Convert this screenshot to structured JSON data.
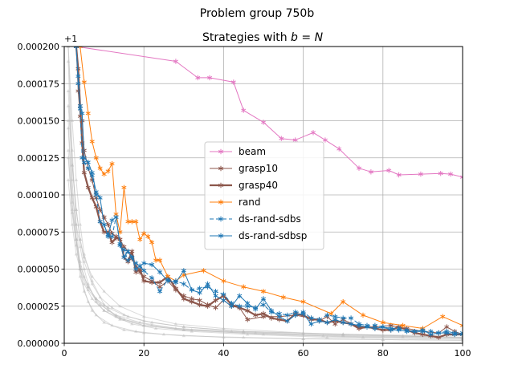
{
  "chart_data": {
    "type": "line",
    "suptitle": "Problem group 750b",
    "title": "Strategies with b = N",
    "title_prefix": "Strategies with ",
    "title_math": "b = N",
    "xlabel": "",
    "ylabel": "",
    "offset_text": "+1",
    "xlim": [
      0,
      100
    ],
    "ylim": [
      0,
      0.0002
    ],
    "xticks": [
      0,
      20,
      40,
      60,
      80,
      100
    ],
    "yticks": [
      0,
      2.5e-05,
      5e-05,
      7.5e-05,
      0.0001,
      0.000125,
      0.00015,
      0.000175,
      0.0002
    ],
    "xtick_labels": [
      "0",
      "20",
      "40",
      "60",
      "80",
      "100"
    ],
    "ytick_labels": [
      "0.000000",
      "0.000025",
      "0.000050",
      "0.000075",
      "0.000100",
      "0.000125",
      "0.000150",
      "0.000175",
      "0.000200"
    ],
    "grid": true,
    "legend_position": "center",
    "background_series_color": "#bbbbbb",
    "background_series": [
      {
        "x": [
          1,
          2,
          3,
          4,
          5,
          7,
          10,
          15,
          20,
          30,
          45,
          60,
          80,
          100
        ],
        "y": [
          0.0002,
          0.00013,
          8e-05,
          5e-05,
          3.5e-05,
          2.2e-05,
          1.4e-05,
          9e-06,
          7e-06,
          5e-06,
          4e-06,
          3e-06,
          2.5e-06,
          2e-06
        ]
      },
      {
        "x": [
          1,
          2,
          3,
          4,
          6,
          8,
          12,
          18,
          25,
          40,
          60,
          80,
          100
        ],
        "y": [
          0.00019,
          0.00011,
          7e-05,
          4.5e-05,
          2.8e-05,
          1.9e-05,
          1.2e-05,
          8e-06,
          6e-06,
          4e-06,
          3e-06,
          2.5e-06,
          2e-06
        ]
      },
      {
        "x": [
          1,
          2,
          3,
          4,
          5,
          7,
          9,
          12,
          16,
          22,
          30,
          45,
          70,
          100
        ],
        "y": [
          0.00017,
          0.00012,
          9e-05,
          7e-05,
          5.5e-05,
          4e-05,
          3.1e-05,
          2.4e-05,
          1.8e-05,
          1.4e-05,
          1.1e-05,
          8e-06,
          6e-06,
          4e-06
        ]
      },
      {
        "x": [
          1,
          2,
          3,
          4,
          5,
          6,
          8,
          10,
          14,
          20,
          30,
          50,
          75,
          100
        ],
        "y": [
          0.00015,
          0.0001,
          8e-05,
          6.5e-05,
          5e-05,
          4e-05,
          2.8e-05,
          2.2e-05,
          1.7e-05,
          1.2e-05,
          9e-06,
          6e-06,
          4e-06,
          3e-06
        ]
      },
      {
        "x": [
          1,
          2,
          3,
          4,
          5,
          7,
          10,
          14,
          20,
          28,
          40,
          60,
          85,
          100
        ],
        "y": [
          0.00016,
          0.00012,
          9e-05,
          7e-05,
          5.8e-05,
          4.5e-05,
          3.5e-05,
          2.5e-05,
          1.8e-05,
          1.3e-05,
          1e-05,
          7e-06,
          5e-06,
          4e-06
        ]
      },
      {
        "x": [
          1,
          2,
          3,
          4,
          5,
          6,
          8,
          11,
          15,
          20,
          30,
          45,
          70,
          100
        ],
        "y": [
          0.00013,
          9e-05,
          7e-05,
          5.5e-05,
          4.5e-05,
          3.8e-05,
          3e-05,
          2.4e-05,
          1.9e-05,
          1.5e-05,
          1.1e-05,
          8e-06,
          6e-06,
          5e-06
        ]
      },
      {
        "x": [
          1,
          2,
          3,
          4,
          6,
          8,
          11,
          15,
          22,
          32,
          48,
          70,
          100
        ],
        "y": [
          0.000145,
          9.5e-05,
          7e-05,
          5.2e-05,
          3.8e-05,
          3e-05,
          2.2e-05,
          1.6e-05,
          1.2e-05,
          9e-06,
          7e-06,
          5e-06,
          4e-06
        ]
      },
      {
        "x": [
          1,
          2,
          3,
          5,
          7,
          10,
          14,
          20,
          30,
          45,
          65,
          85,
          100
        ],
        "y": [
          0.00011,
          8e-05,
          6e-05,
          4e-05,
          3e-05,
          2.2e-05,
          1.6e-05,
          1.2e-05,
          9e-06,
          7e-06,
          5e-06,
          4e-06,
          3e-06
        ]
      },
      {
        "x": [
          1,
          2,
          3,
          4,
          5,
          7,
          10,
          13,
          17,
          23,
          32,
          46,
          66,
          100
        ],
        "y": [
          0.0002,
          0.00015,
          0.00011,
          8e-05,
          6e-05,
          4.2e-05,
          2.6e-05,
          1.8e-05,
          1.3e-05,
          1e-05,
          8e-06,
          6e-06,
          4e-06,
          3e-06
        ]
      },
      {
        "x": [
          1,
          2,
          3,
          4,
          6,
          9,
          13,
          19,
          28,
          42,
          60,
          80,
          100
        ],
        "y": [
          0.000125,
          8.8e-05,
          6.6e-05,
          5e-05,
          3.6e-05,
          2.6e-05,
          1.9e-05,
          1.4e-05,
          1e-05,
          8e-06,
          6e-06,
          5e-06,
          4e-06
        ]
      }
    ],
    "series": [
      {
        "name": "beam",
        "color": "#e377c2",
        "linestyle": "solid",
        "linewidth": 1,
        "x": [
          3,
          28,
          33.5,
          36.5,
          42.5,
          45,
          50,
          54.5,
          58,
          62.5,
          65.5,
          69,
          74,
          77,
          81.5,
          84,
          89.5,
          94.5,
          97,
          100
        ],
        "y": [
          0.0002,
          0.00019,
          0.000179,
          0.000179,
          0.000176,
          0.000157,
          0.000149,
          0.000138,
          0.000137,
          0.000142,
          0.000137,
          0.000131,
          0.000118,
          0.0001155,
          0.0001165,
          0.0001135,
          0.000114,
          0.0001145,
          0.000114,
          0.000112
        ]
      },
      {
        "name": "grasp10",
        "color": "#8c564b",
        "linestyle": "solid",
        "linewidth": 1,
        "x": [
          3,
          3.5,
          4,
          4.5,
          5,
          6,
          7,
          8,
          9,
          10,
          11,
          12,
          13,
          14,
          15,
          16,
          17,
          18,
          19,
          20,
          22,
          24,
          26,
          28,
          30,
          32,
          34,
          36,
          38,
          40,
          42,
          44,
          46,
          50,
          54,
          58,
          62,
          64,
          66,
          68,
          70,
          74,
          78,
          82,
          86,
          90,
          94,
          96,
          98,
          100
        ],
        "y": [
          0.0002,
          0.00017,
          0.000153,
          0.00015,
          0.00013,
          0.000118,
          0.00011,
          9.8e-05,
          9e-05,
          8.5e-05,
          8e-05,
          7.4e-05,
          7.2e-05,
          7e-05,
          6.5e-05,
          6.2e-05,
          5.7e-05,
          5.2e-05,
          4.8e-05,
          4.5e-05,
          4.2e-05,
          3.8e-05,
          4.2e-05,
          3.6e-05,
          3.2e-05,
          3e-05,
          2.9e-05,
          2.6e-05,
          2.4e-05,
          2.9e-05,
          2.5e-05,
          2.4e-05,
          1.6e-05,
          1.8e-05,
          1.8e-05,
          1.9e-05,
          1.7e-05,
          1.5e-05,
          1.8e-05,
          1.3e-05,
          1.6e-05,
          1.1e-05,
          1.1e-05,
          1.2e-05,
          1e-05,
          8e-06,
          7e-06,
          1.1e-05,
          8e-06,
          6e-06
        ]
      },
      {
        "name": "grasp40",
        "color": "#8c564b",
        "linestyle": "solid",
        "linewidth": 2.2,
        "x": [
          3,
          3.5,
          4,
          4.5,
          5,
          6,
          7,
          8,
          9,
          10,
          11,
          12,
          13,
          14,
          15,
          16,
          17,
          18,
          19,
          20,
          22,
          24,
          26,
          28,
          30,
          32,
          34,
          36,
          38,
          40,
          42,
          44,
          46,
          48,
          50,
          52,
          54,
          56,
          58,
          60,
          62,
          64,
          66,
          68,
          70,
          72,
          74,
          76,
          78,
          80,
          82,
          84,
          86,
          88,
          90,
          92,
          94,
          96,
          98,
          100
        ],
        "y": [
          0.0002,
          0.000185,
          0.00016,
          0.000135,
          0.000115,
          0.000105,
          9.8e-05,
          9.2e-05,
          8.2e-05,
          7.5e-05,
          7.5e-05,
          6.8e-05,
          7.1e-05,
          7e-05,
          5.8e-05,
          5.5e-05,
          6.2e-05,
          4.8e-05,
          5e-05,
          4.2e-05,
          4.1e-05,
          4.1e-05,
          4.5e-05,
          3.7e-05,
          3e-05,
          2.8e-05,
          2.6e-05,
          2.5e-05,
          2.9e-05,
          3.2e-05,
          2.6e-05,
          2.4e-05,
          2.2e-05,
          1.9e-05,
          2e-05,
          1.7e-05,
          1.6e-05,
          1.5e-05,
          2e-05,
          1.9e-05,
          1.6e-05,
          1.6e-05,
          1.4e-05,
          1.5e-05,
          1.4e-05,
          1.3e-05,
          1e-05,
          1.1e-05,
          1e-05,
          9e-06,
          9e-06,
          1.1e-05,
          9e-06,
          7e-06,
          6e-06,
          5e-06,
          4e-06,
          6e-06,
          6e-06,
          6e-06
        ]
      },
      {
        "name": "rand",
        "color": "#ff7f0e",
        "linestyle": "solid",
        "linewidth": 1,
        "x": [
          4,
          5,
          6,
          7,
          8,
          9,
          10,
          11,
          12,
          13,
          14,
          15,
          16,
          17,
          18,
          19,
          20,
          21,
          22,
          23,
          24,
          26,
          28,
          30,
          35,
          40,
          45,
          50,
          55,
          60,
          67,
          70,
          75,
          80,
          85,
          90,
          95,
          100
        ],
        "y": [
          0.0002,
          0.000176,
          0.000155,
          0.000136,
          0.000125,
          0.000118,
          0.000114,
          0.000116,
          0.000121,
          8.7e-05,
          7.5e-05,
          0.000105,
          8.2e-05,
          8.2e-05,
          8.2e-05,
          7e-05,
          7.4e-05,
          7.2e-05,
          6.8e-05,
          5.6e-05,
          5.6e-05,
          4.5e-05,
          4.2e-05,
          4.6e-05,
          4.9e-05,
          4.2e-05,
          3.8e-05,
          3.5e-05,
          3.1e-05,
          2.8e-05,
          2e-05,
          2.8e-05,
          1.9e-05,
          1.4e-05,
          1.2e-05,
          1e-05,
          1.8e-05,
          1.2e-05
        ]
      },
      {
        "name": "ds-rand-sdbs",
        "color": "#1f77b4",
        "linestyle": "dashed",
        "linewidth": 1,
        "x": [
          3,
          3.5,
          4,
          4.5,
          5,
          6,
          7,
          8,
          9,
          10,
          11,
          12,
          13,
          14,
          15,
          16,
          17,
          18,
          19,
          20,
          22,
          24,
          26,
          28,
          30,
          32,
          34,
          36,
          38,
          40,
          42,
          44,
          46,
          48,
          50,
          52,
          54,
          56,
          58,
          60,
          62,
          64,
          66,
          68,
          70,
          72,
          74,
          76,
          78,
          80,
          82,
          84,
          86,
          88,
          90,
          92,
          94,
          96,
          98,
          100
        ],
        "y": [
          0.0002,
          0.00018,
          0.000158,
          0.000125,
          0.000122,
          0.000118,
          0.000113,
          0.0001,
          8.2e-05,
          8e-05,
          7.3e-05,
          7.2e-05,
          8.5e-05,
          6.6e-05,
          6.3e-05,
          5.6e-05,
          5.8e-05,
          5.4e-05,
          5.2e-05,
          4.9e-05,
          4.4e-05,
          3.5e-05,
          4.3e-05,
          4.2e-05,
          4e-05,
          3.6e-05,
          3.7e-05,
          3.8e-05,
          3.5e-05,
          3.3e-05,
          2.7e-05,
          2.5e-05,
          2.5e-05,
          2.4e-05,
          2.6e-05,
          2.1e-05,
          2e-05,
          1.9e-05,
          2.1e-05,
          2.1e-05,
          1.7e-05,
          1.6e-05,
          1.9e-05,
          1.8e-05,
          1.7e-05,
          1.7e-05,
          1.3e-05,
          1.2e-05,
          1.2e-05,
          1.1e-05,
          1e-05,
          1e-05,
          9e-06,
          8e-06,
          8e-06,
          8e-06,
          7e-06,
          8e-06,
          7e-06,
          7e-06
        ]
      },
      {
        "name": "ds-rand-sdbsp",
        "color": "#1f77b4",
        "linestyle": "solid",
        "linewidth": 1,
        "x": [
          3,
          3.5,
          4,
          4.5,
          5,
          6,
          7,
          8,
          9,
          10,
          11,
          12,
          13,
          14,
          15,
          16,
          17,
          18,
          19,
          20,
          22,
          24,
          26,
          28,
          30,
          32,
          34,
          36,
          38,
          40,
          42,
          44,
          46,
          48,
          50,
          52,
          54,
          56,
          58,
          60,
          62,
          64,
          66,
          68,
          70,
          72,
          74,
          76,
          78,
          80,
          82,
          84,
          86,
          88,
          90,
          92,
          94,
          96,
          98,
          100
        ],
        "y": [
          0.0002,
          0.000175,
          0.00016,
          0.000155,
          0.000125,
          0.000122,
          0.000115,
          0.000102,
          9.8e-05,
          8e-05,
          7.2e-05,
          8.3e-05,
          8.5e-05,
          6.7e-05,
          5.8e-05,
          6.2e-05,
          5.8e-05,
          5e-05,
          5.2e-05,
          5.4e-05,
          5.3e-05,
          4.8e-05,
          4.2e-05,
          4.1e-05,
          4.9e-05,
          3.6e-05,
          3.4e-05,
          4e-05,
          3.2e-05,
          2.9e-05,
          2.5e-05,
          3.2e-05,
          2.7e-05,
          2.3e-05,
          3e-05,
          2.2e-05,
          1.8e-05,
          1.5e-05,
          1.9e-05,
          2e-05,
          1.3e-05,
          1.5e-05,
          1.4e-05,
          1.6e-05,
          1.4e-05,
          1.3e-05,
          1.2e-05,
          1.1e-05,
          1e-05,
          1.1e-05,
          9e-06,
          9e-06,
          8e-06,
          8e-06,
          9e-06,
          6e-06,
          7e-06,
          7e-06,
          6e-06,
          6e-06
        ]
      }
    ]
  }
}
